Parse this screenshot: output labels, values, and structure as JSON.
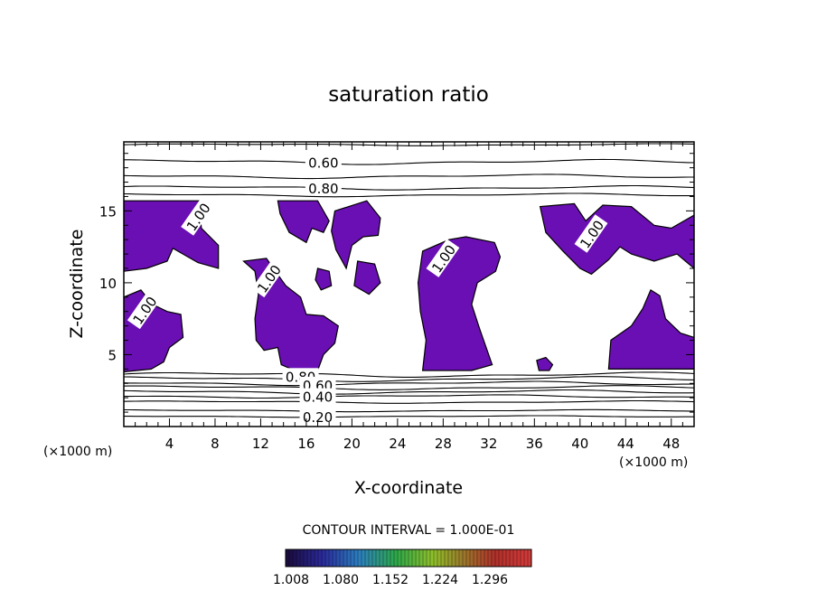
{
  "chart_data": {
    "type": "contour",
    "title": "saturation ratio",
    "xlabel": "X-coordinate",
    "ylabel": "Z-coordinate",
    "x_unit_left": "(×1000 m)",
    "x_unit_right": "(×1000 m)",
    "xlim": [
      0,
      50
    ],
    "ylim": [
      0,
      19.8
    ],
    "xticks": [
      4,
      8,
      12,
      16,
      20,
      24,
      28,
      32,
      36,
      40,
      44,
      48
    ],
    "yticks": [
      5,
      10,
      15
    ],
    "contour_interval_text": "CONTOUR INTERVAL = 1.000E-01",
    "contour_labels": [
      {
        "text": "0.60",
        "x": 17.5,
        "z": 18.4
      },
      {
        "text": "0.80",
        "x": 17.5,
        "z": 16.6
      },
      {
        "text": "0.80",
        "x": 15.5,
        "z": 3.5
      },
      {
        "text": "0.60",
        "x": 17.0,
        "z": 2.9
      },
      {
        "text": "0.40",
        "x": 17.0,
        "z": 2.1
      },
      {
        "text": "0.20",
        "x": 17.0,
        "z": 0.7
      },
      {
        "text": "1.00",
        "x": 6.5,
        "z": 14.6
      },
      {
        "text": "1.00",
        "x": 1.8,
        "z": 8.1
      },
      {
        "text": "1.00",
        "x": 41.0,
        "z": 13.4
      },
      {
        "text": "1.00",
        "x": 28.0,
        "z": 11.7
      },
      {
        "text": "1.00",
        "x": 12.7,
        "z": 10.3
      }
    ],
    "colorbar": {
      "tick_labels": [
        "1.008",
        "1.080",
        "1.152",
        "1.224",
        "1.296"
      ],
      "colors": [
        "#1a0a3a",
        "#2a2a9a",
        "#2b7fbf",
        "#2ea84a",
        "#8fbf2a",
        "#9a7a2a",
        "#b0302a",
        "#d33a3a"
      ]
    },
    "supersaturated_fill_color": "#6a0fb4",
    "supersaturated_regions": [
      {
        "name": "left-top",
        "pts": [
          [
            0,
            15.7
          ],
          [
            6.6,
            15.7
          ],
          [
            6.8,
            13.8
          ],
          [
            8.3,
            12.6
          ],
          [
            8.3,
            11.0
          ],
          [
            6.5,
            11.4
          ],
          [
            4.3,
            12.4
          ],
          [
            3.8,
            11.5
          ],
          [
            2.0,
            11.0
          ],
          [
            0,
            10.8
          ]
        ]
      },
      {
        "name": "left-mid",
        "pts": [
          [
            0,
            9.0
          ],
          [
            1.5,
            9.5
          ],
          [
            2.5,
            8.5
          ],
          [
            3.8,
            8.0
          ],
          [
            5.0,
            7.8
          ],
          [
            5.2,
            6.2
          ],
          [
            4.0,
            5.5
          ],
          [
            3.5,
            4.5
          ],
          [
            2.4,
            4.0
          ],
          [
            0,
            3.8
          ]
        ]
      },
      {
        "name": "center-left",
        "pts": [
          [
            10.5,
            11.5
          ],
          [
            11.5,
            10.8
          ],
          [
            11.8,
            9.2
          ],
          [
            11.5,
            7.5
          ],
          [
            11.6,
            6.0
          ],
          [
            12.3,
            5.3
          ],
          [
            13.5,
            5.5
          ],
          [
            13.8,
            4.3
          ],
          [
            15.0,
            3.9
          ],
          [
            17.0,
            3.9
          ],
          [
            17.5,
            5.0
          ],
          [
            18.5,
            5.8
          ],
          [
            18.8,
            7.0
          ],
          [
            17.5,
            7.7
          ],
          [
            16.0,
            7.8
          ],
          [
            15.5,
            9.0
          ],
          [
            14.2,
            9.8
          ],
          [
            13.3,
            10.8
          ],
          [
            12.5,
            11.7
          ]
        ]
      },
      {
        "name": "center-top",
        "pts": [
          [
            13.5,
            15.7
          ],
          [
            17.0,
            15.7
          ],
          [
            18.0,
            14.3
          ],
          [
            17.5,
            13.5
          ],
          [
            16.5,
            13.8
          ],
          [
            16.0,
            12.8
          ],
          [
            14.5,
            13.5
          ],
          [
            13.7,
            14.8
          ]
        ]
      },
      {
        "name": "top-right-blob",
        "pts": [
          [
            18.5,
            15.0
          ],
          [
            21.3,
            15.7
          ],
          [
            22.5,
            14.5
          ],
          [
            22.3,
            13.3
          ],
          [
            21.0,
            13.2
          ],
          [
            20.0,
            12.6
          ],
          [
            19.5,
            11.0
          ],
          [
            18.6,
            12.3
          ],
          [
            18.2,
            13.6
          ]
        ]
      },
      {
        "name": "center-mid",
        "pts": [
          [
            20.5,
            11.5
          ],
          [
            22.0,
            11.3
          ],
          [
            22.5,
            10.0
          ],
          [
            21.5,
            9.2
          ],
          [
            20.2,
            9.8
          ]
        ]
      },
      {
        "name": "center-right",
        "pts": [
          [
            26.2,
            12.2
          ],
          [
            28.5,
            13.0
          ],
          [
            30.0,
            13.2
          ],
          [
            32.5,
            12.8
          ],
          [
            33.0,
            11.8
          ],
          [
            32.6,
            10.8
          ],
          [
            31.0,
            10.0
          ],
          [
            30.5,
            8.5
          ],
          [
            31.2,
            6.8
          ],
          [
            32.3,
            4.3
          ],
          [
            30.5,
            3.9
          ],
          [
            26.2,
            3.9
          ],
          [
            26.5,
            6.0
          ],
          [
            26.0,
            8.0
          ],
          [
            25.8,
            10.0
          ]
        ]
      },
      {
        "name": "right-top",
        "pts": [
          [
            36.5,
            15.3
          ],
          [
            39.5,
            15.5
          ],
          [
            40.5,
            14.3
          ],
          [
            42.0,
            15.4
          ],
          [
            44.5,
            15.3
          ],
          [
            46.5,
            14.0
          ],
          [
            48.0,
            13.8
          ],
          [
            50.0,
            14.7
          ],
          [
            50.0,
            11.0
          ],
          [
            48.5,
            12.0
          ],
          [
            46.5,
            11.5
          ],
          [
            44.5,
            12.0
          ],
          [
            43.5,
            12.5
          ],
          [
            42.5,
            11.6
          ],
          [
            41.0,
            10.6
          ],
          [
            40.0,
            11.0
          ],
          [
            38.5,
            12.2
          ],
          [
            37.0,
            13.5
          ]
        ]
      },
      {
        "name": "right-lower",
        "pts": [
          [
            42.5,
            4.0
          ],
          [
            42.7,
            6.0
          ],
          [
            44.5,
            7.0
          ],
          [
            45.5,
            8.2
          ],
          [
            46.2,
            9.5
          ],
          [
            47.0,
            9.1
          ],
          [
            47.5,
            7.5
          ],
          [
            48.8,
            6.5
          ],
          [
            50.0,
            6.2
          ],
          [
            50.0,
            4.0
          ]
        ]
      },
      {
        "name": "small-bottom",
        "pts": [
          [
            36.2,
            4.6
          ],
          [
            37.0,
            4.8
          ],
          [
            37.6,
            4.3
          ],
          [
            37.3,
            3.9
          ],
          [
            36.4,
            3.9
          ]
        ]
      },
      {
        "name": "small-center",
        "pts": [
          [
            17.0,
            11.0
          ],
          [
            18.0,
            10.8
          ],
          [
            18.2,
            9.8
          ],
          [
            17.3,
            9.5
          ],
          [
            16.8,
            10.2
          ]
        ]
      }
    ]
  }
}
